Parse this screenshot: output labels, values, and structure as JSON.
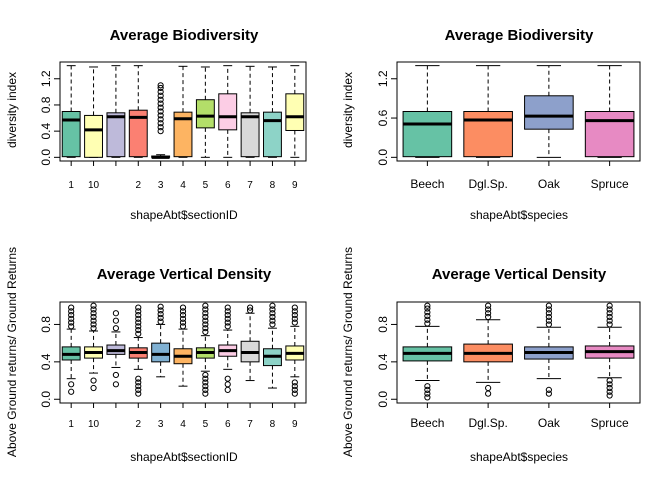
{
  "chart_data": [
    {
      "type": "boxplot",
      "title": "Average Biodiversity",
      "xlabel": "shapeAbt$sectionID",
      "ylabel": "diversity index",
      "ylim": [
        0,
        1.4
      ],
      "yticks": [
        0.0,
        0.4,
        0.8,
        1.2
      ],
      "ytick_labels": [
        "0.0",
        "0.4",
        "0.8",
        "1.2"
      ],
      "categories": [
        "1",
        "10",
        "",
        "2",
        "3",
        "4",
        "5",
        "6",
        "7",
        "8",
        "9"
      ],
      "boxes": [
        {
          "label": "1",
          "q1": 0.01,
          "median": 0.57,
          "q3": 0.7,
          "lower": 0.0,
          "upper": 1.4,
          "color": "#66C2A5",
          "outliers": []
        },
        {
          "label": "10",
          "q1": 0.0,
          "median": 0.42,
          "q3": 0.64,
          "lower": 0.0,
          "upper": 1.38,
          "color": "#FFFFB3",
          "outliers": []
        },
        {
          "label": "",
          "q1": 0.01,
          "median": 0.62,
          "q3": 0.68,
          "lower": 0.0,
          "upper": 1.4,
          "color": "#BEBADA",
          "outliers": []
        },
        {
          "label": "2",
          "q1": 0.01,
          "median": 0.61,
          "q3": 0.72,
          "lower": 0.0,
          "upper": 1.4,
          "color": "#FB8072",
          "outliers": []
        },
        {
          "label": "3",
          "q1": 0.0,
          "median": 0.0,
          "q3": 0.02,
          "lower": 0.0,
          "upper": 0.04,
          "color": "#80B1D3",
          "outliers": [
            0.4,
            0.46,
            0.52,
            0.58,
            0.64,
            0.7,
            0.76,
            0.82,
            0.88,
            0.94,
            1.0,
            1.06,
            1.1
          ]
        },
        {
          "label": "4",
          "q1": 0.01,
          "median": 0.59,
          "q3": 0.69,
          "lower": 0.0,
          "upper": 1.39,
          "color": "#FDB462",
          "outliers": []
        },
        {
          "label": "5",
          "q1": 0.45,
          "median": 0.63,
          "q3": 0.88,
          "lower": 0.0,
          "upper": 1.38,
          "color": "#B3DE69",
          "outliers": []
        },
        {
          "label": "6",
          "q1": 0.42,
          "median": 0.62,
          "q3": 0.97,
          "lower": 0.0,
          "upper": 1.4,
          "color": "#FCCDE5",
          "outliers": []
        },
        {
          "label": "7",
          "q1": 0.01,
          "median": 0.62,
          "q3": 0.68,
          "lower": 0.0,
          "upper": 1.39,
          "color": "#D9D9D9",
          "outliers": []
        },
        {
          "label": "8",
          "q1": 0.01,
          "median": 0.56,
          "q3": 0.69,
          "lower": 0.0,
          "upper": 1.38,
          "color": "#8DD3C7",
          "outliers": []
        },
        {
          "label": "9",
          "q1": 0.41,
          "median": 0.62,
          "q3": 0.97,
          "lower": 0.0,
          "upper": 1.4,
          "color": "#FFFFB3",
          "outliers": []
        }
      ]
    },
    {
      "type": "boxplot",
      "title": "Average Biodiversity",
      "xlabel": "shapeAbt$species",
      "ylabel": "diversity index",
      "ylim": [
        0,
        1.4
      ],
      "yticks": [
        0.0,
        0.6,
        1.2
      ],
      "ytick_labels": [
        "0.0",
        "0.6",
        "1.2"
      ],
      "categories": [
        "Beech",
        "Dgl.Sp.",
        "Oak",
        "Spruce"
      ],
      "boxes": [
        {
          "label": "Beech",
          "q1": 0.01,
          "median": 0.51,
          "q3": 0.7,
          "lower": 0.0,
          "upper": 1.4,
          "color": "#66C2A5",
          "outliers": []
        },
        {
          "label": "Dgl.Sp.",
          "q1": 0.01,
          "median": 0.57,
          "q3": 0.7,
          "lower": 0.0,
          "upper": 1.4,
          "color": "#FC8D62",
          "outliers": []
        },
        {
          "label": "Oak",
          "q1": 0.43,
          "median": 0.63,
          "q3": 0.94,
          "lower": 0.0,
          "upper": 1.4,
          "color": "#8DA0CB",
          "outliers": []
        },
        {
          "label": "Spruce",
          "q1": 0.01,
          "median": 0.56,
          "q3": 0.7,
          "lower": 0.0,
          "upper": 1.4,
          "color": "#E78AC3",
          "outliers": []
        }
      ]
    },
    {
      "type": "boxplot",
      "title": "Average Vertical Density",
      "xlabel": "shapeAbt$sectionID",
      "ylabel": "Above Ground returns/ Ground Returns",
      "ylim": [
        0,
        1
      ],
      "yticks": [
        0.0,
        0.4,
        0.8
      ],
      "ytick_labels": [
        "0.0",
        "0.4",
        "0.8"
      ],
      "categories": [
        "1",
        "10",
        "",
        "2",
        "3",
        "4",
        "5",
        "6",
        "7",
        "8",
        "9"
      ],
      "boxes": [
        {
          "label": "1",
          "q1": 0.42,
          "median": 0.48,
          "q3": 0.56,
          "lower": 0.22,
          "upper": 0.75,
          "color": "#66C2A5",
          "outliers": [
            0.08,
            0.16,
            0.78,
            0.82,
            0.86,
            0.9,
            0.94,
            0.98
          ]
        },
        {
          "label": "10",
          "q1": 0.44,
          "median": 0.5,
          "q3": 0.56,
          "lower": 0.28,
          "upper": 0.73,
          "color": "#FFFFB3",
          "outliers": [
            0.12,
            0.2,
            0.76,
            0.8,
            0.84,
            0.88,
            0.92,
            0.96,
            1.0
          ]
        },
        {
          "label": "",
          "q1": 0.48,
          "median": 0.52,
          "q3": 0.58,
          "lower": 0.34,
          "upper": 0.72,
          "color": "#BEBADA",
          "outliers": [
            0.16,
            0.26,
            0.76,
            0.84,
            0.92
          ]
        },
        {
          "label": "2",
          "q1": 0.44,
          "median": 0.5,
          "q3": 0.55,
          "lower": 0.32,
          "upper": 0.66,
          "color": "#FB8072",
          "outliers": [
            0.06,
            0.1,
            0.14,
            0.18,
            0.22,
            0.7,
            0.74,
            0.78,
            0.82,
            0.86,
            0.9,
            0.94,
            0.98
          ]
        },
        {
          "label": "3",
          "q1": 0.4,
          "median": 0.48,
          "q3": 0.6,
          "lower": 0.24,
          "upper": 0.8,
          "color": "#80B1D3",
          "outliers": [
            0.83,
            0.87,
            0.91,
            0.95,
            0.99
          ]
        },
        {
          "label": "4",
          "q1": 0.38,
          "median": 0.46,
          "q3": 0.54,
          "lower": 0.14,
          "upper": 0.75,
          "color": "#FDB462",
          "outliers": [
            0.78,
            0.82,
            0.86,
            0.9,
            0.94,
            0.98
          ]
        },
        {
          "label": "5",
          "q1": 0.44,
          "median": 0.5,
          "q3": 0.55,
          "lower": 0.3,
          "upper": 0.68,
          "color": "#B3DE69",
          "outliers": [
            0.06,
            0.1,
            0.14,
            0.18,
            0.22,
            0.26,
            0.72,
            0.76,
            0.8,
            0.84,
            0.88,
            0.92,
            0.96,
            1.0
          ]
        },
        {
          "label": "6",
          "q1": 0.46,
          "median": 0.52,
          "q3": 0.58,
          "lower": 0.32,
          "upper": 0.74,
          "color": "#FCCDE5",
          "outliers": [
            0.1,
            0.16,
            0.22,
            0.78,
            0.82,
            0.86,
            0.9,
            0.94,
            0.98
          ]
        },
        {
          "label": "7",
          "q1": 0.4,
          "median": 0.5,
          "q3": 0.62,
          "lower": 0.2,
          "upper": 0.92,
          "color": "#D9D9D9",
          "outliers": [
            0.95,
            0.98
          ]
        },
        {
          "label": "8",
          "q1": 0.36,
          "median": 0.46,
          "q3": 0.54,
          "lower": 0.12,
          "upper": 0.76,
          "color": "#8DD3C7",
          "outliers": [
            0.8,
            0.84,
            0.88,
            0.92,
            0.96,
            1.0
          ]
        },
        {
          "label": "9",
          "q1": 0.42,
          "median": 0.49,
          "q3": 0.57,
          "lower": 0.24,
          "upper": 0.78,
          "color": "#FFFFB3",
          "outliers": [
            0.06,
            0.1,
            0.14,
            0.18,
            0.82,
            0.86,
            0.9,
            0.94,
            0.98
          ]
        }
      ]
    },
    {
      "type": "boxplot",
      "title": "Average Vertical Density",
      "xlabel": "shapeAbt$species",
      "ylabel": "Above Ground returns/ Ground Returns",
      "ylim": [
        0,
        1
      ],
      "yticks": [
        0.0,
        0.4,
        0.8
      ],
      "ytick_labels": [
        "0.0",
        "0.4",
        "0.8"
      ],
      "categories": [
        "Beech",
        "Dgl.Sp.",
        "Oak",
        "Spruce"
      ],
      "boxes": [
        {
          "label": "Beech",
          "q1": 0.41,
          "median": 0.49,
          "q3": 0.56,
          "lower": 0.2,
          "upper": 0.78,
          "color": "#66C2A5",
          "outliers": [
            0.02,
            0.06,
            0.1,
            0.14,
            0.81,
            0.85,
            0.89,
            0.93,
            0.97,
            1.0
          ]
        },
        {
          "label": "Dgl.Sp.",
          "q1": 0.4,
          "median": 0.49,
          "q3": 0.59,
          "lower": 0.18,
          "upper": 0.85,
          "color": "#FC8D62",
          "outliers": [
            0.06,
            0.12,
            0.88,
            0.92,
            0.96,
            1.0
          ]
        },
        {
          "label": "Oak",
          "q1": 0.43,
          "median": 0.5,
          "q3": 0.56,
          "lower": 0.22,
          "upper": 0.77,
          "color": "#8DA0CB",
          "outliers": [
            0.06,
            0.1,
            0.8,
            0.84,
            0.88,
            0.92,
            0.96,
            1.0
          ]
        },
        {
          "label": "Spruce",
          "q1": 0.44,
          "median": 0.51,
          "q3": 0.57,
          "lower": 0.23,
          "upper": 0.77,
          "color": "#E78AC3",
          "outliers": [
            0.04,
            0.08,
            0.12,
            0.16,
            0.2,
            0.8,
            0.84,
            0.88,
            0.92,
            0.96,
            1.0
          ]
        }
      ]
    }
  ]
}
